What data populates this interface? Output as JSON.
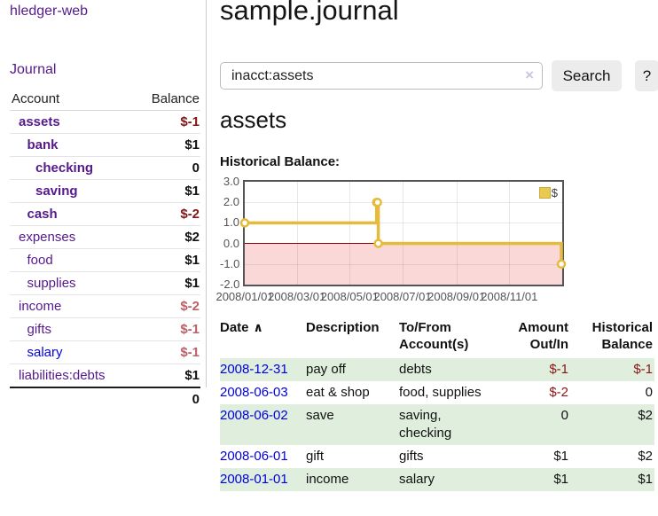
{
  "app": {
    "brand": "hledger-web",
    "nav": {
      "journal": "Journal"
    }
  },
  "sidebar": {
    "header": {
      "account": "Account",
      "balance": "Balance"
    },
    "accounts": [
      {
        "name": "assets",
        "depth": 1,
        "balance": "$-1",
        "matched": true,
        "balance_tone": "negative-strong"
      },
      {
        "name": "bank",
        "depth": 2,
        "balance": "$1",
        "matched": true,
        "balance_tone": "normal"
      },
      {
        "name": "checking",
        "depth": 3,
        "balance": "0",
        "matched": true,
        "balance_tone": "normal"
      },
      {
        "name": "saving",
        "depth": 3,
        "balance": "$1",
        "matched": true,
        "balance_tone": "normal"
      },
      {
        "name": "cash",
        "depth": 2,
        "balance": "$-2",
        "matched": true,
        "balance_tone": "negative-strong"
      },
      {
        "name": "expenses",
        "depth": 1,
        "balance": "$2",
        "matched": false,
        "balance_tone": "normal"
      },
      {
        "name": "food",
        "depth": 2,
        "balance": "$1",
        "matched": false,
        "balance_tone": "normal"
      },
      {
        "name": "supplies",
        "depth": 2,
        "balance": "$1",
        "matched": false,
        "balance_tone": "normal"
      },
      {
        "name": "income",
        "depth": 1,
        "balance": "$-2",
        "matched": false,
        "balance_tone": "negative-soft"
      },
      {
        "name": "gifts",
        "depth": 2,
        "balance": "$-1",
        "matched": false,
        "balance_tone": "negative-soft"
      },
      {
        "name": "salary",
        "depth": 2,
        "balance": "$-1",
        "matched": false,
        "balance_tone": "negative-soft",
        "link_tone": "unvisited"
      },
      {
        "name": "liabilities:debts",
        "depth": 1,
        "balance": "$1",
        "matched": false,
        "balance_tone": "normal"
      }
    ],
    "total": "0"
  },
  "main": {
    "title": "sample.journal",
    "search": {
      "value": "inacct:assets",
      "clear_icon": "×",
      "search_button": "Search",
      "help_button": "?"
    },
    "account_heading": "assets",
    "chart_heading": "Historical Balance:"
  },
  "chart_data": {
    "type": "line",
    "style": "step",
    "title": "Historical Balance",
    "series": [
      {
        "name": "$",
        "color": "#e6bb3c",
        "points": [
          [
            "2008-01-01",
            1
          ],
          [
            "2008-06-01",
            2
          ],
          [
            "2008-06-02",
            2
          ],
          [
            "2008-06-03",
            0
          ],
          [
            "2008-12-31",
            -1
          ]
        ]
      }
    ],
    "x_range": [
      "2008-01-01",
      "2009-01-01"
    ],
    "ylim": [
      -2.0,
      3.0
    ],
    "y_ticks": [
      3.0,
      2.0,
      1.0,
      0.0,
      -1.0,
      -2.0
    ],
    "x_ticks": [
      "2008/01/01",
      "2008/03/01",
      "2008/05/01",
      "2008/07/01",
      "2008/09/01",
      "2008/11/01"
    ],
    "grid": true,
    "legend_position": "top-right",
    "negative_region_color": "#fbd8d8",
    "zero_line_color": "#8b0000"
  },
  "register": {
    "columns": [
      {
        "lines": [
          "Date"
        ],
        "align": "left",
        "sort_icon": "∧"
      },
      {
        "lines": [
          "Description"
        ],
        "align": "left"
      },
      {
        "lines": [
          "To/From",
          "Account(s)"
        ],
        "align": "left"
      },
      {
        "lines": [
          "Amount",
          "Out/In"
        ],
        "align": "right"
      },
      {
        "lines": [
          "Historical",
          "Balance"
        ],
        "align": "right"
      }
    ],
    "rows": [
      {
        "date": "2008-12-31",
        "description": "pay off",
        "accounts": "debts",
        "amount": "$-1",
        "amount_negative": true,
        "balance": "$-1",
        "balance_negative": true
      },
      {
        "date": "2008-06-03",
        "description": "eat & shop",
        "accounts": "food, supplies",
        "amount": "$-2",
        "amount_negative": true,
        "balance": "0",
        "balance_negative": false
      },
      {
        "date": "2008-06-02",
        "description": "save",
        "accounts": "saving, checking",
        "amount": "0",
        "amount_negative": false,
        "balance": "$2",
        "balance_negative": false
      },
      {
        "date": "2008-06-01",
        "description": "gift",
        "accounts": "gifts",
        "amount": "$1",
        "amount_negative": false,
        "balance": "$2",
        "balance_negative": false
      },
      {
        "date": "2008-01-01",
        "description": "income",
        "accounts": "salary",
        "amount": "$1",
        "amount_negative": false,
        "balance": "$1",
        "balance_negative": false
      }
    ]
  }
}
